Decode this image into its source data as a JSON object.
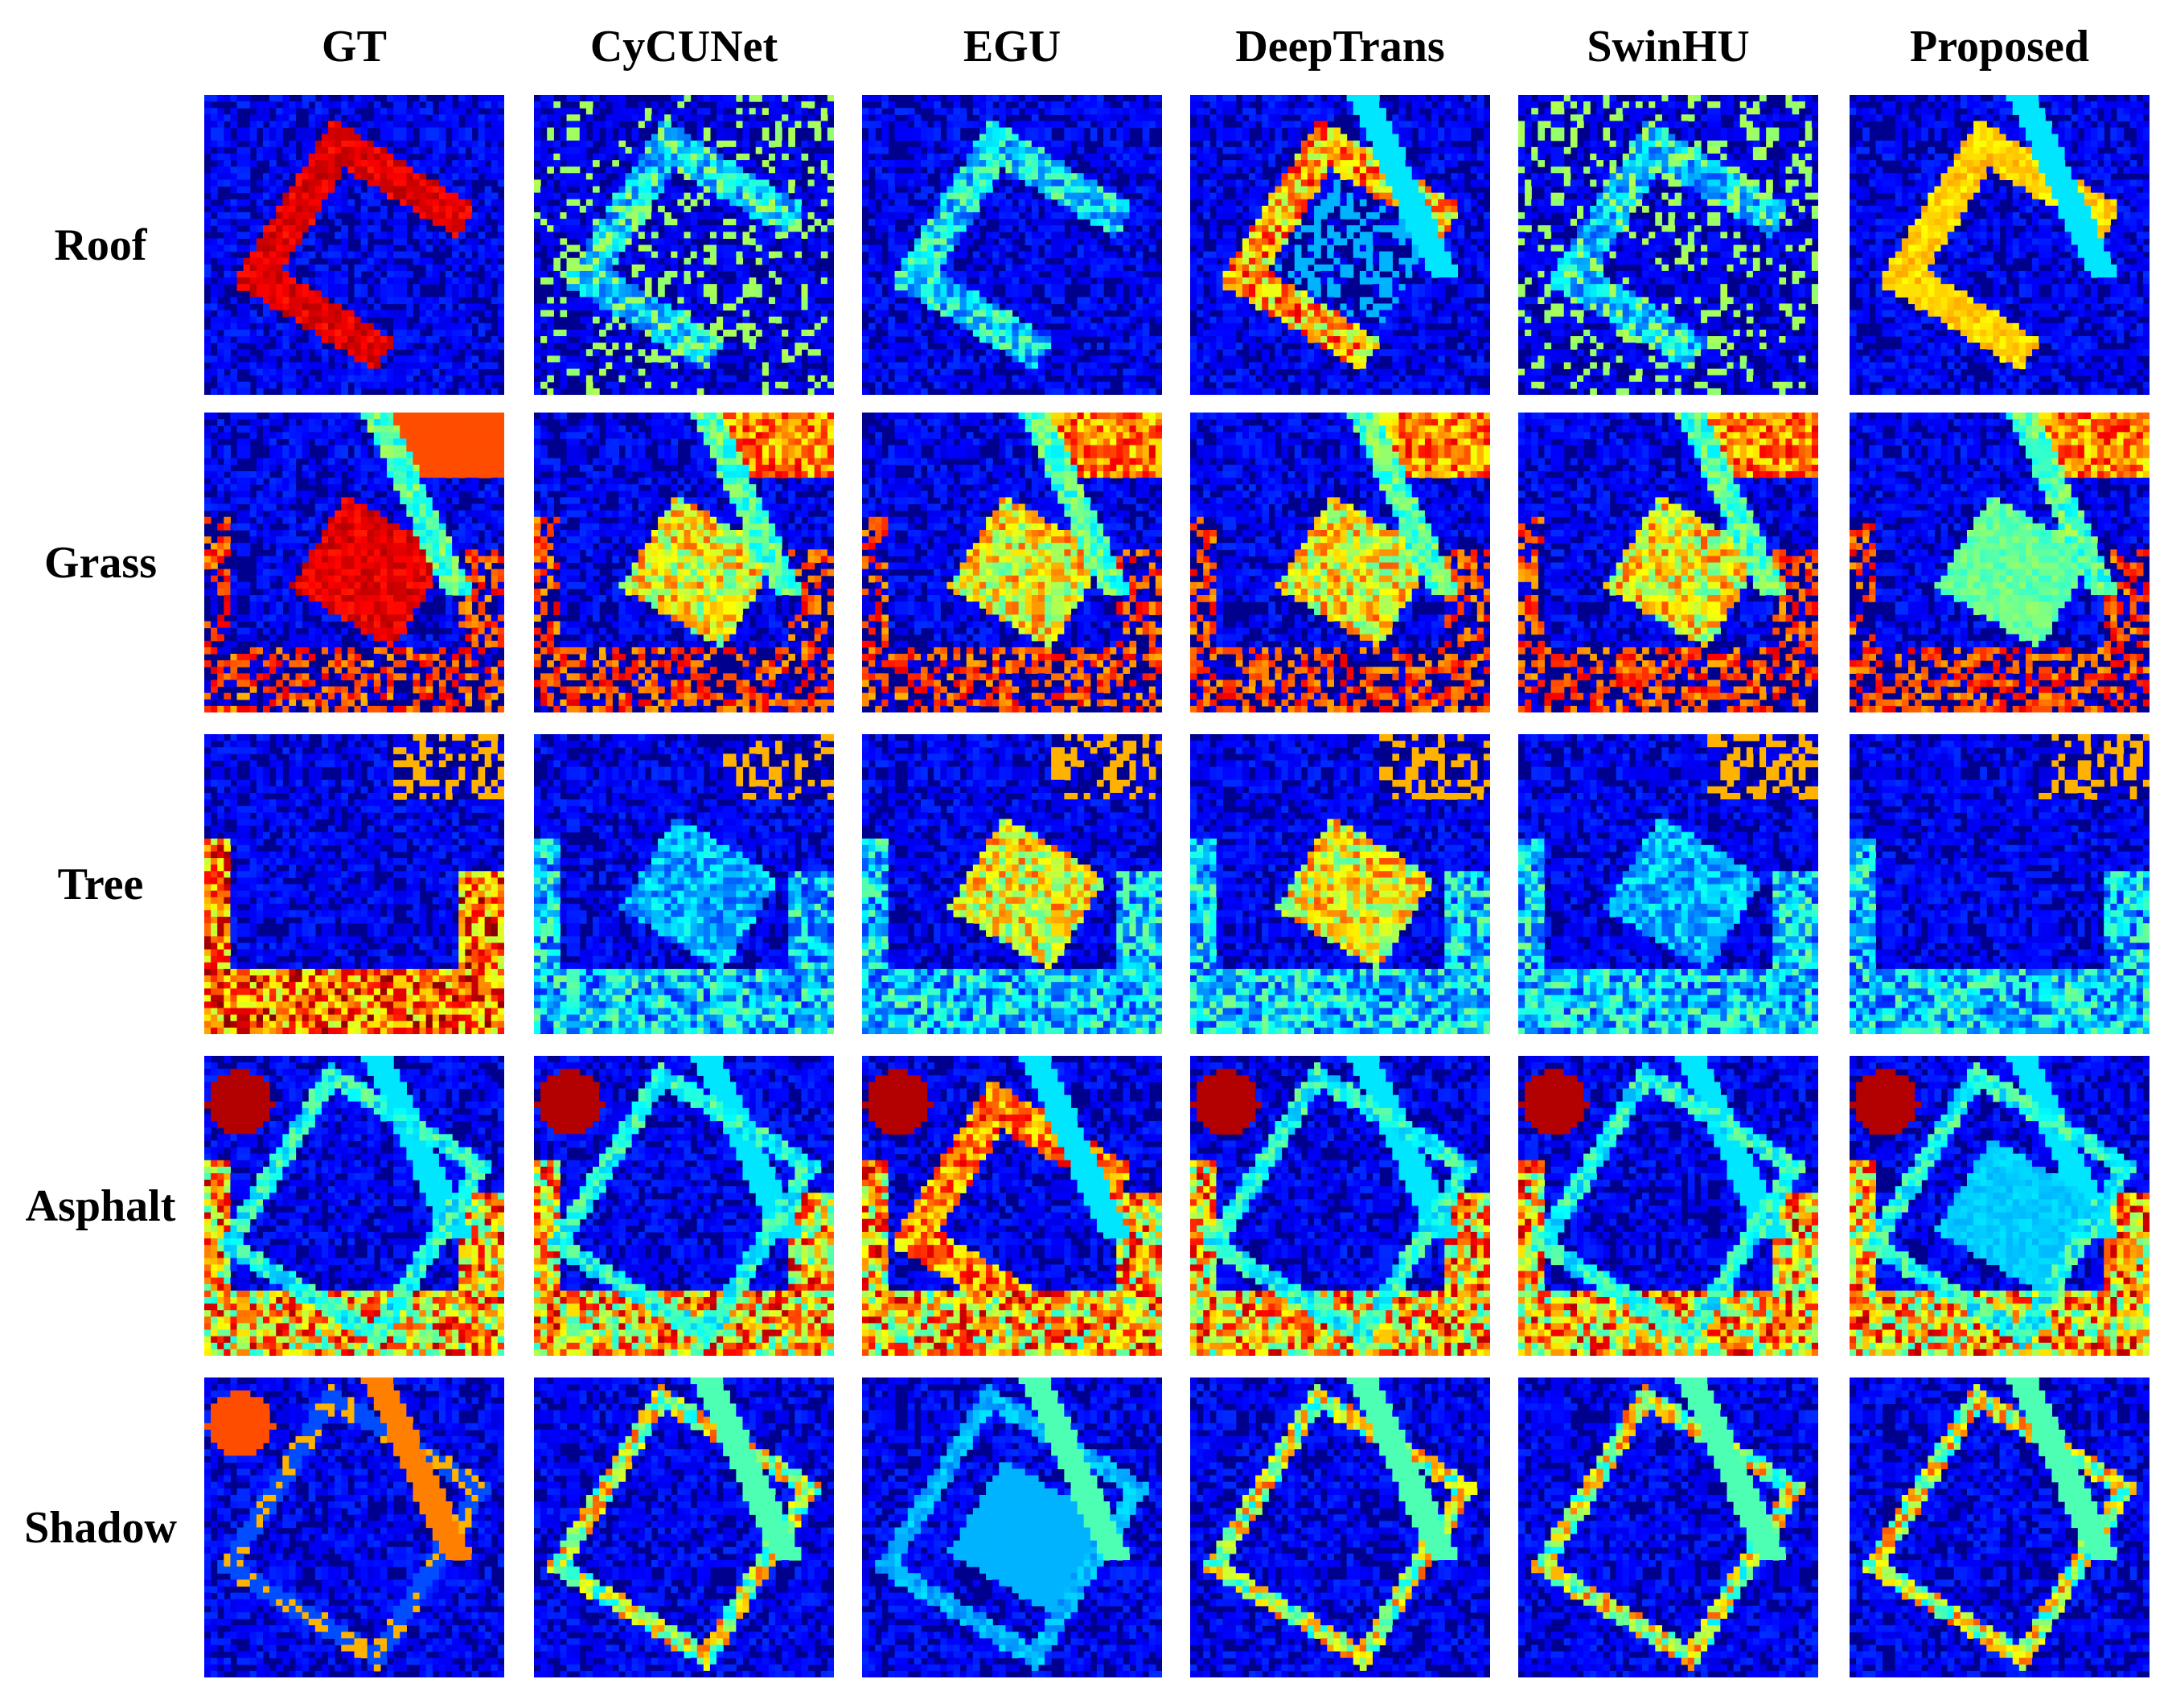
{
  "figure": {
    "columns": [
      "GT",
      "CyCUNet",
      "EGU",
      "DeepTrans",
      "SwinHU",
      "Proposed"
    ],
    "rows": [
      "Roof",
      "Grass",
      "Tree",
      "Asphalt",
      "Shadow"
    ],
    "colormap": {
      "name": "jet",
      "stops": [
        "#00008f",
        "#0000ff",
        "#0080ff",
        "#00ffff",
        "#80ff80",
        "#ffff00",
        "#ff8000",
        "#ff0000",
        "#800000"
      ]
    }
  }
}
